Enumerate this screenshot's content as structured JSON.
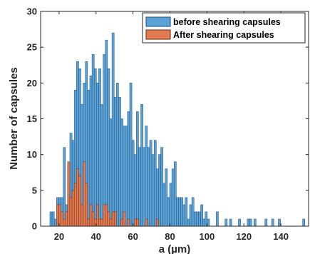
{
  "chart_data": {
    "type": "bar",
    "xlabel": "a (µm)",
    "ylabel": "Number of capsules",
    "xlim": [
      10,
      155
    ],
    "ylim": [
      0,
      30
    ],
    "xticks": [
      20,
      40,
      60,
      80,
      100,
      120,
      140
    ],
    "yticks": [
      0,
      5,
      10,
      15,
      20,
      25,
      30
    ],
    "bin_width": 1.2,
    "grid": false,
    "legend_position": "top-right",
    "series": [
      {
        "name": "before shearing capsules",
        "color": "#5ba3d6",
        "edgecolor": "#1f4a78",
        "x": [
          15.0,
          16.2,
          17.4,
          18.6,
          19.8,
          21.0,
          22.2,
          23.4,
          24.6,
          25.8,
          27.0,
          28.2,
          29.4,
          30.6,
          31.8,
          33.0,
          34.2,
          35.4,
          36.6,
          37.8,
          39.0,
          40.2,
          41.4,
          42.6,
          43.8,
          45.0,
          46.2,
          47.4,
          48.6,
          49.8,
          51.0,
          52.2,
          53.4,
          54.6,
          55.8,
          57.0,
          58.2,
          59.4,
          60.6,
          61.8,
          63.0,
          64.2,
          65.4,
          66.6,
          67.8,
          69.0,
          70.2,
          71.4,
          72.6,
          73.8,
          75.0,
          76.2,
          77.4,
          78.6,
          79.8,
          81.0,
          82.2,
          83.4,
          84.6,
          85.8,
          87.0,
          88.2,
          89.4,
          90.6,
          91.8,
          93.0,
          94.2,
          95.4,
          96.6,
          97.8,
          99.0,
          100.2,
          101.4,
          102.6,
          103.8,
          105.0,
          106.2,
          107.4,
          108.6,
          109.8,
          111.0,
          112.2,
          113.4,
          114.6,
          115.8,
          117.0,
          118.2,
          119.4,
          120.6,
          121.8,
          123.0,
          124.2,
          125.4,
          126.6,
          127.8,
          129.0,
          130.2,
          131.4,
          132.6,
          133.8,
          135.0,
          136.2,
          137.4,
          138.6,
          139.8,
          141.0,
          142.2,
          143.4,
          144.6,
          145.8,
          147.0,
          148.2,
          149.4,
          150.6,
          151.8
        ],
        "values": [
          2,
          2,
          1,
          4,
          4,
          4,
          11,
          3,
          8,
          13,
          12,
          19,
          23,
          22,
          17,
          20,
          23,
          19,
          21,
          24,
          22,
          20,
          22,
          17,
          24,
          26,
          22,
          15,
          27,
          18,
          20,
          18,
          15,
          14,
          14,
          16,
          20,
          12,
          10,
          16,
          11,
          17,
          11,
          14,
          11,
          12,
          10,
          12,
          8,
          10,
          11,
          6,
          8,
          4,
          6,
          8,
          9,
          4,
          4,
          4,
          3,
          4,
          1,
          3,
          4,
          2,
          2,
          2,
          3,
          1,
          2,
          1,
          0,
          0,
          0,
          2,
          0,
          0,
          0,
          1,
          0,
          1,
          0,
          0,
          0,
          1,
          0,
          0,
          0,
          1,
          1,
          0,
          1,
          0,
          0,
          0,
          0,
          1,
          0,
          0,
          1,
          0,
          0,
          1,
          0,
          0,
          0,
          0,
          0,
          0,
          0,
          0,
          0,
          0,
          1
        ]
      },
      {
        "name": "After shearing capsules",
        "color": "#e37b52",
        "edgecolor": "#6b2a10",
        "x": [
          15.0,
          16.2,
          17.4,
          18.6,
          19.8,
          21.0,
          22.2,
          23.4,
          24.6,
          25.8,
          27.0,
          28.2,
          29.4,
          30.6,
          31.8,
          33.0,
          34.2,
          35.4,
          36.6,
          37.8,
          39.0,
          40.2,
          41.4,
          42.6,
          43.8,
          45.0,
          46.2,
          47.4,
          48.6,
          49.8,
          51.0,
          52.2,
          53.4,
          54.6,
          55.8,
          57.0,
          58.2,
          59.4,
          60.6,
          61.8,
          63.0,
          64.2,
          65.4,
          66.6,
          67.8,
          69.0,
          70.2,
          71.4,
          72.6,
          73.8
        ],
        "values": [
          0,
          0,
          0,
          3,
          3,
          2,
          1,
          2,
          9,
          4,
          5,
          6,
          8,
          7,
          3,
          9,
          6,
          1,
          3,
          2,
          1,
          3,
          1,
          1,
          3,
          3,
          2,
          1,
          2,
          2,
          0,
          0,
          1,
          2,
          0,
          1,
          0,
          0,
          1,
          1,
          0,
          0,
          0,
          1,
          0,
          0,
          0,
          0,
          1,
          0
        ]
      }
    ]
  }
}
